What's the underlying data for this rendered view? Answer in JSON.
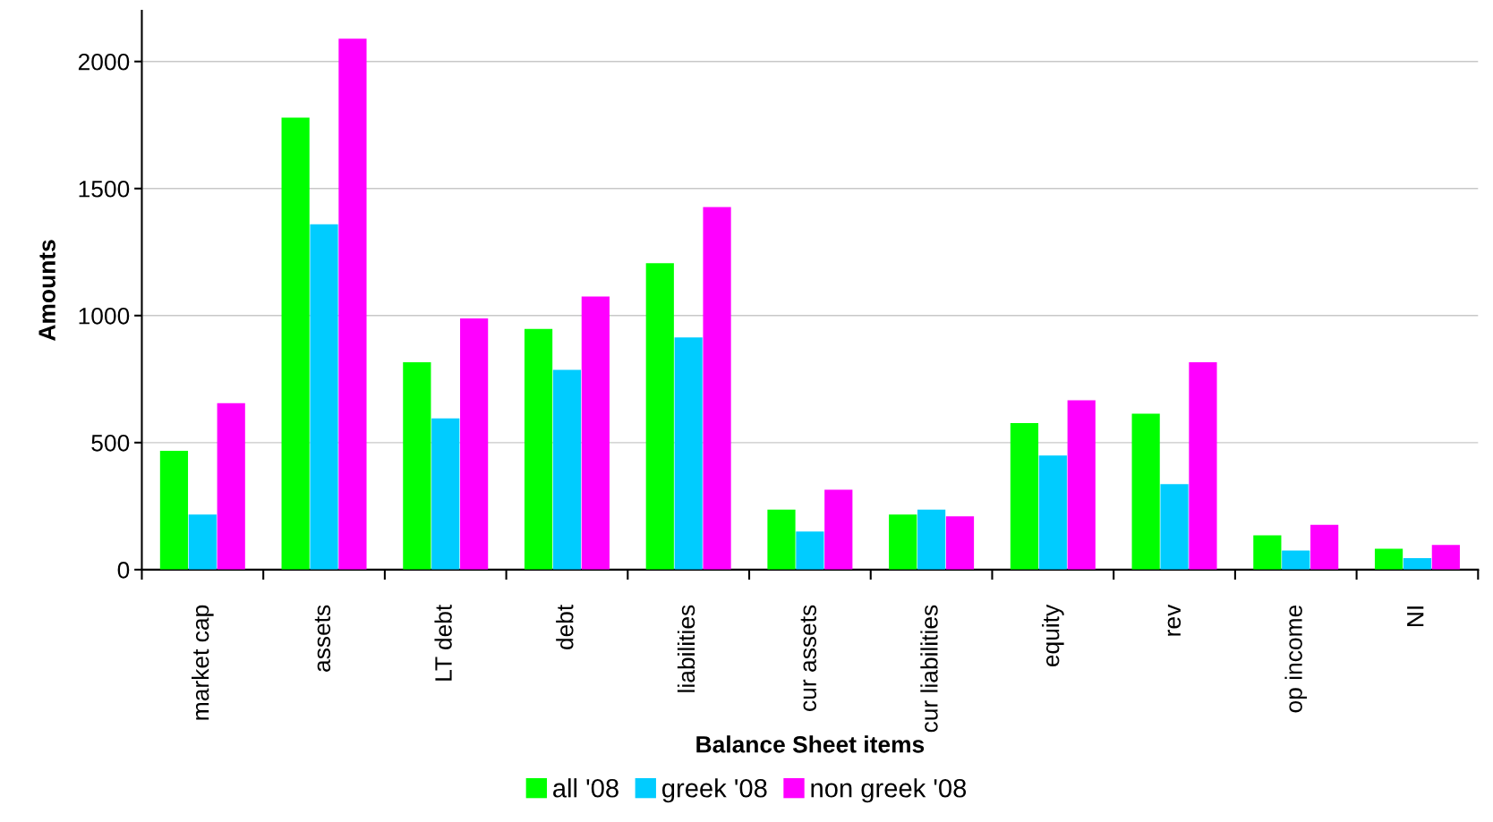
{
  "chart_data": {
    "type": "bar",
    "xlabel": "Balance Sheet items",
    "ylabel": "Amounts",
    "categories": [
      "market cap",
      "assets",
      "LT debt",
      "debt",
      "liabilities",
      "cur assets",
      "cur liabilities",
      "equity",
      "rev",
      "op income",
      "NI"
    ],
    "series": [
      {
        "name": "all '08",
        "color": "#00ff00",
        "values": [
          468,
          1779,
          816,
          947,
          1206,
          236,
          217,
          577,
          614,
          135,
          82
        ]
      },
      {
        "name": "greek '08",
        "color": "#00ccff",
        "values": [
          217,
          1359,
          595,
          786,
          914,
          150,
          236,
          449,
          337,
          75,
          45
        ]
      },
      {
        "name": "non greek '08",
        "color": "#ff00ff",
        "values": [
          655,
          2090,
          989,
          1075,
          1427,
          315,
          210,
          667,
          816,
          176,
          97
        ]
      }
    ],
    "ylim": [
      0,
      2200
    ],
    "yticks": [
      0,
      500,
      1000,
      1500,
      2000
    ],
    "grid": "y",
    "legend": "bottom"
  }
}
